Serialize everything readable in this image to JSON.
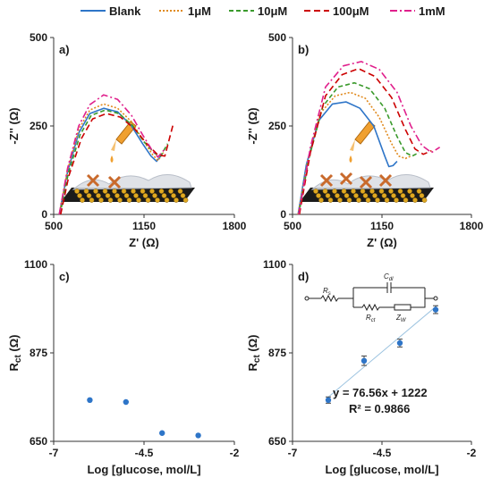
{
  "colors": {
    "blank": "#2e75c8",
    "c1uM": "#e08a1e",
    "c10uM": "#3a9a2c",
    "c100uM": "#cc0000",
    "c1mM": "#e0208c",
    "points": "#2e75c8",
    "fit": "#9cc3e0",
    "axis": "#333333"
  },
  "legend": [
    "Blank",
    "1μM",
    "10μM",
    "100μM",
    "1mM"
  ],
  "chart_data": [
    {
      "panel": "a)",
      "type": "line",
      "xlabel": "Z' (Ω)",
      "ylabel": "-Z'' (Ω)",
      "xlim": [
        500,
        1800
      ],
      "ylim": [
        0,
        500
      ],
      "xticks": [
        "500",
        "1150",
        "1800"
      ],
      "yticks": [
        "0",
        "250",
        "500"
      ],
      "series": [
        {
          "name": "Blank",
          "x": [
            540,
            600,
            680,
            760,
            860,
            960,
            1060,
            1140,
            1200,
            1240,
            1280
          ],
          "y": [
            0,
            120,
            230,
            285,
            300,
            290,
            250,
            200,
            165,
            150,
            170
          ]
        },
        {
          "name": "1μM",
          "x": [
            540,
            600,
            680,
            760,
            860,
            960,
            1060,
            1140,
            1210,
            1250,
            1290
          ],
          "y": [
            0,
            125,
            240,
            295,
            312,
            300,
            262,
            212,
            170,
            152,
            175
          ]
        },
        {
          "name": "10μM",
          "x": [
            545,
            605,
            690,
            770,
            870,
            970,
            1070,
            1150,
            1230,
            1270,
            1320
          ],
          "y": [
            0,
            115,
            225,
            280,
            295,
            285,
            250,
            205,
            172,
            165,
            200
          ]
        },
        {
          "name": "100μM",
          "x": [
            550,
            610,
            700,
            780,
            880,
            980,
            1080,
            1170,
            1250,
            1300,
            1360
          ],
          "y": [
            0,
            110,
            215,
            270,
            285,
            275,
            243,
            200,
            168,
            165,
            255
          ]
        },
        {
          "name": "1mM",
          "x": [
            540,
            600,
            680,
            760,
            860,
            960,
            1060,
            1140,
            1210,
            1250,
            1300
          ],
          "y": [
            0,
            130,
            250,
            310,
            338,
            325,
            280,
            225,
            180,
            162,
            185
          ]
        }
      ]
    },
    {
      "panel": "b)",
      "type": "line",
      "xlabel": "Z' (Ω)",
      "ylabel": "-Z'' (Ω)",
      "xlim": [
        500,
        1800
      ],
      "ylim": [
        0,
        500
      ],
      "xticks": [
        "500",
        "1150",
        "1800"
      ],
      "yticks": [
        "0",
        "250",
        "500"
      ],
      "series": [
        {
          "name": "Blank",
          "x": [
            540,
            600,
            690,
            790,
            890,
            990,
            1090,
            1170,
            1200,
            1230,
            1260
          ],
          "y": [
            0,
            140,
            265,
            312,
            318,
            300,
            250,
            165,
            135,
            138,
            150
          ]
        },
        {
          "name": "1μM",
          "x": [
            540,
            610,
            700,
            810,
            920,
            1030,
            1130,
            1220,
            1270,
            1320,
            1360
          ],
          "y": [
            0,
            150,
            285,
            335,
            345,
            328,
            275,
            200,
            165,
            158,
            165
          ]
        },
        {
          "name": "10μM",
          "x": [
            545,
            620,
            720,
            830,
            950,
            1060,
            1170,
            1260,
            1320,
            1370,
            1420
          ],
          "y": [
            0,
            160,
            305,
            360,
            372,
            355,
            300,
            220,
            175,
            165,
            175
          ]
        },
        {
          "name": "100μM",
          "x": [
            550,
            630,
            740,
            860,
            980,
            1100,
            1220,
            1320,
            1390,
            1450,
            1510
          ],
          "y": [
            0,
            175,
            335,
            395,
            412,
            390,
            330,
            240,
            185,
            170,
            180
          ]
        },
        {
          "name": "1mM",
          "x": [
            545,
            630,
            740,
            870,
            1000,
            1130,
            1260,
            1360,
            1440,
            1510,
            1570
          ],
          "y": [
            0,
            190,
            360,
            420,
            432,
            410,
            345,
            250,
            195,
            175,
            190
          ]
        }
      ]
    },
    {
      "panel": "c)",
      "type": "scatter",
      "xlabel": "Log [glucose, mol/L]",
      "ylabel": "Rct (Ω)",
      "ylabel_main": "R",
      "ylabel_sub": "ct",
      "ylabel_tail": " (Ω)",
      "xlim": [
        -7,
        -2
      ],
      "ylim": [
        650,
        1100
      ],
      "xticks": [
        "-7",
        "-4.5",
        "-2"
      ],
      "yticks": [
        "650",
        "875",
        "1100"
      ],
      "points": [
        [
          -6,
          755
        ],
        [
          -5,
          750
        ],
        [
          -4,
          671
        ],
        [
          -3,
          665
        ]
      ]
    },
    {
      "panel": "d)",
      "type": "scatter",
      "xlabel": "Log [glucose, mol/L]",
      "ylabel": "Rct (Ω)",
      "ylabel_main": "R",
      "ylabel_sub": "ct",
      "ylabel_tail": " (Ω)",
      "xlim": [
        -7,
        -2
      ],
      "ylim": [
        650,
        1100
      ],
      "xticks": [
        "-7",
        "-4.5",
        "-2"
      ],
      "yticks": [
        "650",
        "875",
        "1100"
      ],
      "points": [
        [
          -6,
          755
        ],
        [
          -5,
          855
        ],
        [
          -4,
          900
        ],
        [
          -3,
          985
        ]
      ],
      "error": [
        8,
        12,
        10,
        10
      ],
      "fit": {
        "slope": 76.56,
        "intercept": 1222
      },
      "equation": "y = 76.56x + 1222",
      "r2": "R² = 0.9866",
      "circuit": {
        "rs": "R",
        "rs_sub": "s",
        "cdl": "C",
        "cdl_sub": "dl",
        "rct": "R",
        "rct_sub": "ct",
        "zw": "Z",
        "zw_sub": "W"
      }
    }
  ]
}
